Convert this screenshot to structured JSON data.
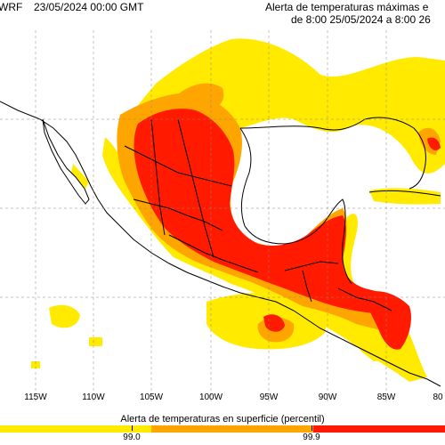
{
  "header": {
    "model_label": "WRF",
    "init_time": "23/05/2024 00:00 GMT",
    "title_line1": "Alerta de temperaturas máximas e",
    "title_line2": "de 8:00 25/05/2024 a 8:00 26"
  },
  "map": {
    "longitude_labels": [
      "115W",
      "110W",
      "105W",
      "100W",
      "95W",
      "90W",
      "85W",
      "80"
    ],
    "colors": {
      "background": "#ffffff",
      "yellow": "#ffea00",
      "orange": "#ffa500",
      "red": "#ff1a00",
      "border": "#000000",
      "graticule": "#888888"
    }
  },
  "legend": {
    "title": "Alerta de temperaturas en superficie (percentil)",
    "ticks": [
      "99.0",
      "99.9"
    ],
    "colors": [
      "#ffea00",
      "#ffa500",
      "#ff1a00"
    ]
  }
}
